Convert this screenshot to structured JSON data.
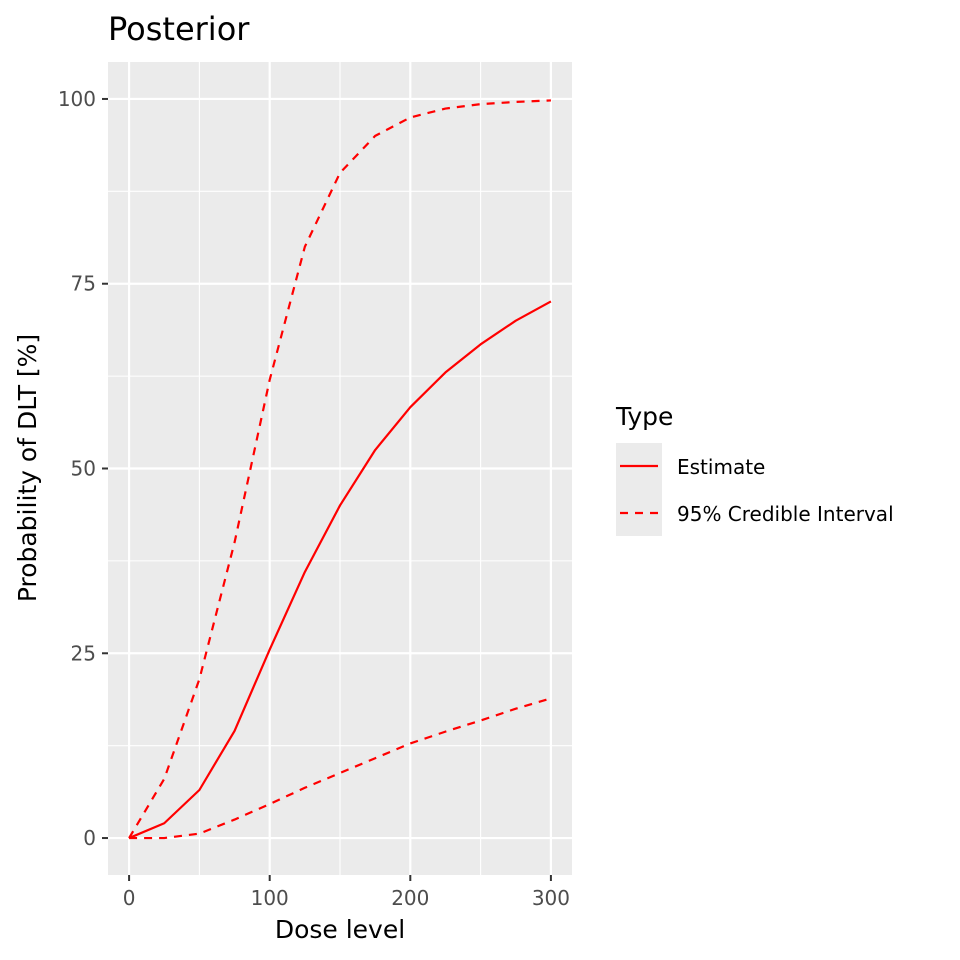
{
  "chart_data": {
    "type": "line",
    "title": "Posterior",
    "xlabel": "Dose level",
    "ylabel": "Probability of DLT [%]",
    "xlim": [
      -15,
      315
    ],
    "ylim": [
      -5,
      105
    ],
    "x_ticks": [
      0,
      100,
      200,
      300
    ],
    "y_ticks": [
      0,
      25,
      50,
      75,
      100
    ],
    "x_tick_labels": [
      "0",
      "100",
      "200",
      "300"
    ],
    "y_tick_labels": [
      "0",
      "25",
      "50",
      "75",
      "100"
    ],
    "grid": true,
    "legend_position": "right",
    "legend": {
      "title": "Type",
      "entries": [
        {
          "label": "Estimate",
          "linetype": "solid"
        },
        {
          "label": "95% Credible Interval",
          "linetype": "dashed"
        }
      ]
    },
    "color": "#ff0000",
    "series": [
      {
        "name": "Estimate",
        "linetype": "solid",
        "x": [
          0,
          25,
          50,
          75,
          100,
          125,
          150,
          175,
          200,
          225,
          250,
          275,
          300
        ],
        "values": [
          0,
          2,
          6.5,
          14.5,
          25.5,
          36,
          45,
          52.5,
          58.3,
          63,
          66.8,
          70,
          72.6
        ]
      },
      {
        "name": "95% Credible Interval",
        "linetype": "dashed",
        "x": [
          0,
          25,
          50,
          75,
          100,
          125,
          150,
          175,
          200,
          225,
          250,
          275,
          300
        ],
        "values": [
          0,
          8,
          21.5,
          40,
          62,
          80,
          90,
          95,
          97.5,
          98.7,
          99.3,
          99.6,
          99.8
        ]
      },
      {
        "name": "95% Credible Interval",
        "linetype": "dashed",
        "x": [
          0,
          25,
          50,
          75,
          100,
          125,
          150,
          175,
          200,
          225,
          250,
          275,
          300
        ],
        "values": [
          0,
          0,
          0.6,
          2.5,
          4.6,
          6.8,
          8.8,
          10.8,
          12.8,
          14.4,
          15.9,
          17.5,
          18.9
        ]
      }
    ]
  }
}
